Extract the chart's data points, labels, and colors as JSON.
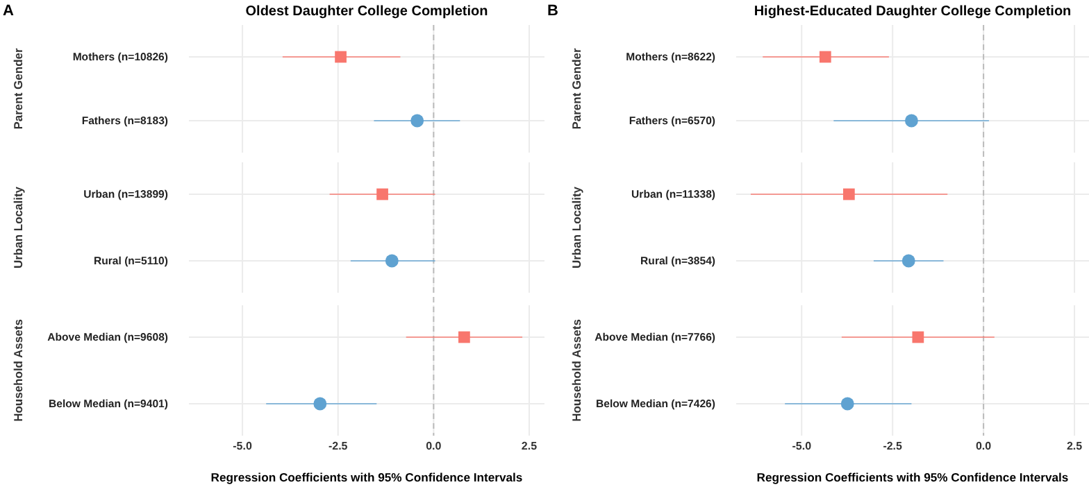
{
  "chart_data": [
    {
      "type": "scatter",
      "title": "Oldest Daughter College Completion",
      "xlabel": "Regression Coefficients with 95% Confidence Intervals",
      "orientation": "horizontal",
      "annotations": [
        "A",
        "Parent Gender",
        "Urban Locality",
        "Household Assets"
      ],
      "categories": [
        "Mothers (n=10826)",
        "Fathers (n=8183)",
        "Urban (n=13899)",
        "Rural (n=5110)",
        "Above Median (n=9608)",
        "Below Median (n=9401)"
      ],
      "series": [
        {
          "color": "#f8766d",
          "marker": "square",
          "values": [
            -2.43,
            null,
            -1.34,
            null,
            0.8,
            null
          ],
          "errors": [
            [
              -3.95,
              -0.87
            ],
            null,
            [
              -2.72,
              0.04
            ],
            null,
            [
              -0.72,
              2.32
            ],
            null
          ]
        },
        {
          "color": "#5fa2d1",
          "marker": "circle",
          "values": [
            null,
            -0.43,
            null,
            -1.09,
            null,
            -2.97
          ],
          "errors": [
            null,
            [
              -1.56,
              0.69
            ],
            null,
            [
              -2.17,
              0.04
            ],
            null,
            [
              -4.38,
              -1.49
            ]
          ]
        }
      ],
      "xlim": [
        -6.4,
        2.9
      ],
      "xticks": [
        {
          "value": -5,
          "label": "-5.0"
        },
        {
          "value": -2.5,
          "label": "-2.5"
        },
        {
          "value": 0,
          "label": "0.0"
        },
        {
          "value": 2.5,
          "label": "2.5"
        }
      ],
      "ref_lines": [
        {
          "axis": "x",
          "value": 0,
          "color": "#bbbbbb",
          "line_style": "dashed"
        }
      ],
      "grid": true
    },
    {
      "type": "scatter",
      "title": "Highest-Educated Daughter College Completion",
      "xlabel": "Regression Coefficients with 95% Confidence Intervals",
      "orientation": "horizontal",
      "annotations": [
        "B",
        "Parent Gender",
        "Urban Locality",
        "Household Assets"
      ],
      "categories": [
        "Mothers (n=8622)",
        "Fathers (n=6570)",
        "Urban (n=11338)",
        "Rural (n=3854)",
        "Above Median (n=7766)",
        "Below Median (n=7426)"
      ],
      "series": [
        {
          "color": "#f8766d",
          "marker": "square",
          "values": [
            -4.35,
            null,
            -3.7,
            null,
            -1.8,
            null
          ],
          "errors": [
            [
              -6.07,
              -2.6
            ],
            null,
            [
              -6.4,
              -0.99
            ],
            null,
            [
              -3.9,
              0.3
            ],
            null
          ]
        },
        {
          "color": "#5fa2d1",
          "marker": "circle",
          "values": [
            null,
            -1.98,
            null,
            -2.06,
            null,
            -3.74
          ],
          "errors": [
            null,
            [
              -4.12,
              0.15
            ],
            null,
            [
              -3.02,
              -1.1
            ],
            null,
            [
              -5.46,
              -1.98
            ]
          ]
        }
      ],
      "xlim": [
        -6.8,
        2.9
      ],
      "xticks": [
        {
          "value": -5,
          "label": "-5.0"
        },
        {
          "value": -2.5,
          "label": "-2.5"
        },
        {
          "value": 0,
          "label": "0.0"
        },
        {
          "value": 2.5,
          "label": "2.5"
        }
      ],
      "ref_lines": [
        {
          "axis": "x",
          "value": 0,
          "color": "#bbbbbb",
          "line_style": "dashed"
        }
      ],
      "grid": true
    }
  ]
}
